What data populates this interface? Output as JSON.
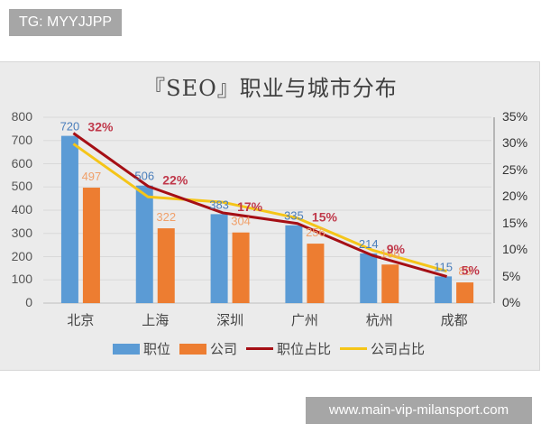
{
  "watermark_top": "TG: MYYJJPP",
  "watermark_bottom": "www.main-vip-milansport.com",
  "chart_data": {
    "type": "bar",
    "title": "『SEO』职业与城市分布",
    "categories": [
      "北京",
      "上海",
      "深圳",
      "广州",
      "杭州",
      "成都"
    ],
    "series": [
      {
        "name": "职位",
        "type": "bar",
        "axis": "left",
        "color": "#5b9bd5",
        "values": [
          720,
          506,
          383,
          335,
          214,
          115
        ]
      },
      {
        "name": "公司",
        "type": "bar",
        "axis": "left",
        "color": "#ed7d31",
        "values": [
          497,
          322,
          304,
          256,
          166,
          89
        ]
      },
      {
        "name": "职位占比",
        "type": "line",
        "axis": "right",
        "color": "#a50f15",
        "values": [
          0.32,
          0.22,
          0.17,
          0.15,
          0.09,
          0.05
        ]
      },
      {
        "name": "公司占比",
        "type": "line",
        "axis": "right",
        "color": "#f5c518",
        "values": [
          0.3,
          0.2,
          0.19,
          0.16,
          0.1,
          0.06
        ]
      }
    ],
    "data_labels": {
      "职位": [
        "720",
        "506",
        "383",
        "335",
        "214",
        "115"
      ],
      "公司": [
        "497",
        "322",
        "304",
        "256",
        "166",
        "89"
      ],
      "职位占比": [
        "32%",
        "22%",
        "17%",
        "15%",
        "9%",
        "5%"
      ]
    },
    "y_left": {
      "ticks": [
        "0",
        "100",
        "200",
        "300",
        "400",
        "500",
        "600",
        "700",
        "800"
      ],
      "range": [
        0,
        800
      ]
    },
    "y_right": {
      "ticks": [
        "0%",
        "5%",
        "10%",
        "15%",
        "20%",
        "25%",
        "30%",
        "35%"
      ],
      "range": [
        0,
        0.35
      ]
    },
    "grid": true,
    "legend_position": "bottom",
    "xlabel": "",
    "ylabel": ""
  },
  "legend": {
    "items": [
      {
        "label": "职位",
        "kind": "bar",
        "color": "#5b9bd5"
      },
      {
        "label": "公司",
        "kind": "bar",
        "color": "#ed7d31"
      },
      {
        "label": "职位占比",
        "kind": "line",
        "color": "#a50f15"
      },
      {
        "label": "公司占比",
        "kind": "line",
        "color": "#f5c518"
      }
    ]
  }
}
